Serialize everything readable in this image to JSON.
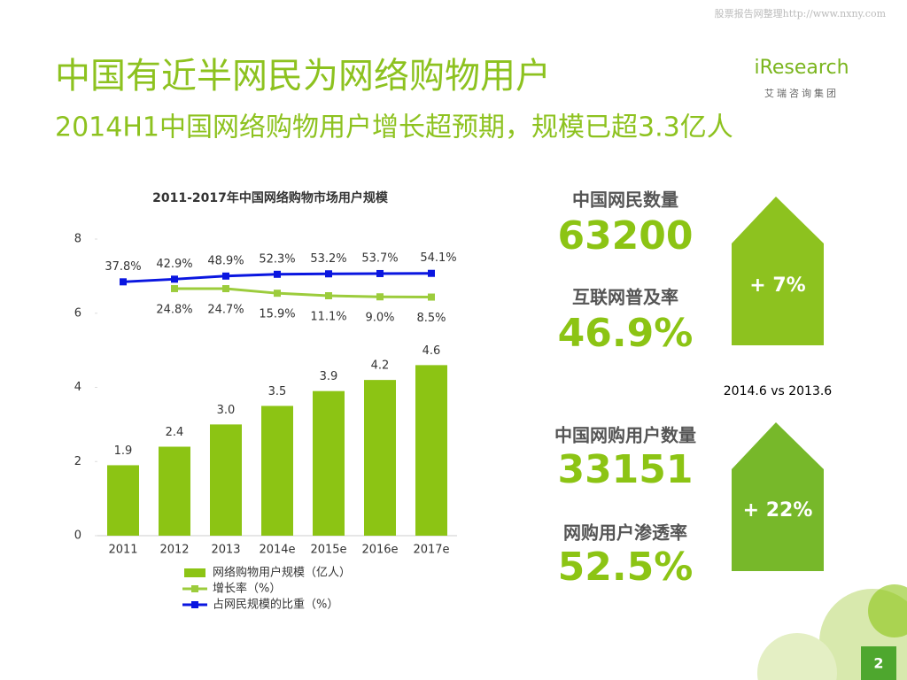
{
  "watermark": "股票报告网整理http://www.nxny.com",
  "header": {
    "title": "中国有近半网民为网络购物用户",
    "subtitle": "2014H1中国网络购物用户增长超预期，规模已超3.3亿人"
  },
  "logo": {
    "name": "iResearch",
    "company": "艾瑞咨询集团"
  },
  "chart_data": {
    "type": "bar",
    "title": "2011-2017年中国网络购物市场用户规模",
    "categories": [
      "2011",
      "2012",
      "2013",
      "2014e",
      "2015e",
      "2016e",
      "2017e"
    ],
    "ylim": [
      0,
      8
    ],
    "yticks": [
      0,
      2,
      4,
      6,
      8
    ],
    "y2lim": [
      -450,
      120
    ],
    "legend": "bottom-left",
    "series": [
      {
        "name": "网络购物用户规模（亿人）",
        "type": "bar",
        "color": "#8cc414",
        "values": [
          1.9,
          2.4,
          3.0,
          3.5,
          3.9,
          4.2,
          4.6
        ],
        "value_labels": [
          "1.9",
          "2.4",
          "3.0",
          "3.5",
          "3.9",
          "4.2",
          "4.6"
        ]
      },
      {
        "name": "增长率（%）",
        "type": "line",
        "axis": "y2",
        "color": "#9ccc3c",
        "values": [
          null,
          24.8,
          24.7,
          15.9,
          11.1,
          9.0,
          8.5
        ],
        "value_labels": [
          null,
          "24.8%",
          "24.7%",
          "15.9%",
          "11.1%",
          "9.0%",
          "8.5%"
        ]
      },
      {
        "name": "占网民规模的比重（%）",
        "type": "line",
        "axis": "y2",
        "color": "#0a16e0",
        "values": [
          37.8,
          42.9,
          48.9,
          52.3,
          53.2,
          53.7,
          54.1
        ],
        "value_labels": [
          "37.8%",
          "42.9%",
          "48.9%",
          "52.3%",
          "53.2%",
          "53.7%",
          "54.1%"
        ]
      }
    ]
  },
  "stats": {
    "groups": [
      {
        "items": [
          {
            "label": "中国网民数量",
            "value": "63200"
          },
          {
            "label": "互联网普及率",
            "value": "46.9%"
          }
        ],
        "change": "+ 7%"
      },
      {
        "items": [
          {
            "label": "中国网购用户数量",
            "value": "33151"
          },
          {
            "label": "网购用户渗透率",
            "value": "52.5%"
          }
        ],
        "change": "+ 22%"
      }
    ],
    "comparison": "2014.6 vs 2013.6"
  },
  "page_number": "2"
}
